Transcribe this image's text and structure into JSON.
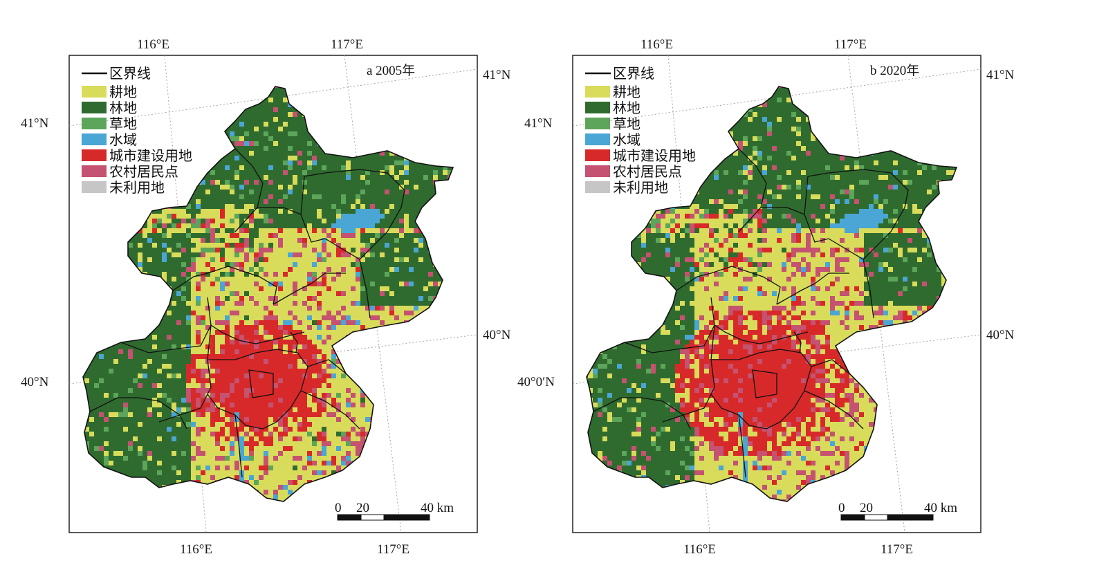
{
  "panels": [
    {
      "title": "a 2005年",
      "lat_labels_left": [
        "41°N",
        "40°N"
      ],
      "lat_labels_right": [
        "41°N",
        "40°N"
      ],
      "lon_labels_top": [
        "116°E",
        "117°E"
      ],
      "lon_labels_bottom": [
        "116°E",
        "117°E"
      ],
      "urban_extent": 0.42
    },
    {
      "title": "b 2020年",
      "lat_labels_left": [
        "41°N",
        "40°0′N"
      ],
      "lat_labels_right": [
        "41°N",
        "40°N"
      ],
      "lon_labels_top": [
        "116°E",
        "117°E"
      ],
      "lon_labels_bottom": [
        "116°E",
        "117°E"
      ],
      "urban_extent": 0.62
    }
  ],
  "legend": {
    "boundary_label": "区界线",
    "items": [
      {
        "label": "耕地",
        "color": "#d9dc5a",
        "icon": "cropland-swatch"
      },
      {
        "label": "林地",
        "color": "#2f6b2f",
        "icon": "forest-swatch"
      },
      {
        "label": "草地",
        "color": "#5ca55a",
        "icon": "grassland-swatch"
      },
      {
        "label": "水域",
        "color": "#4aa6d4",
        "icon": "water-swatch"
      },
      {
        "label": "城市建设用地",
        "color": "#d8292a",
        "icon": "urban-swatch"
      },
      {
        "label": "农村居民点",
        "color": "#c45270",
        "icon": "rural-swatch"
      },
      {
        "label": "未利用地",
        "color": "#c6c6c6",
        "icon": "unused-swatch"
      }
    ]
  },
  "scale_bar": {
    "labels": [
      "0",
      "20",
      "40 km"
    ]
  }
}
